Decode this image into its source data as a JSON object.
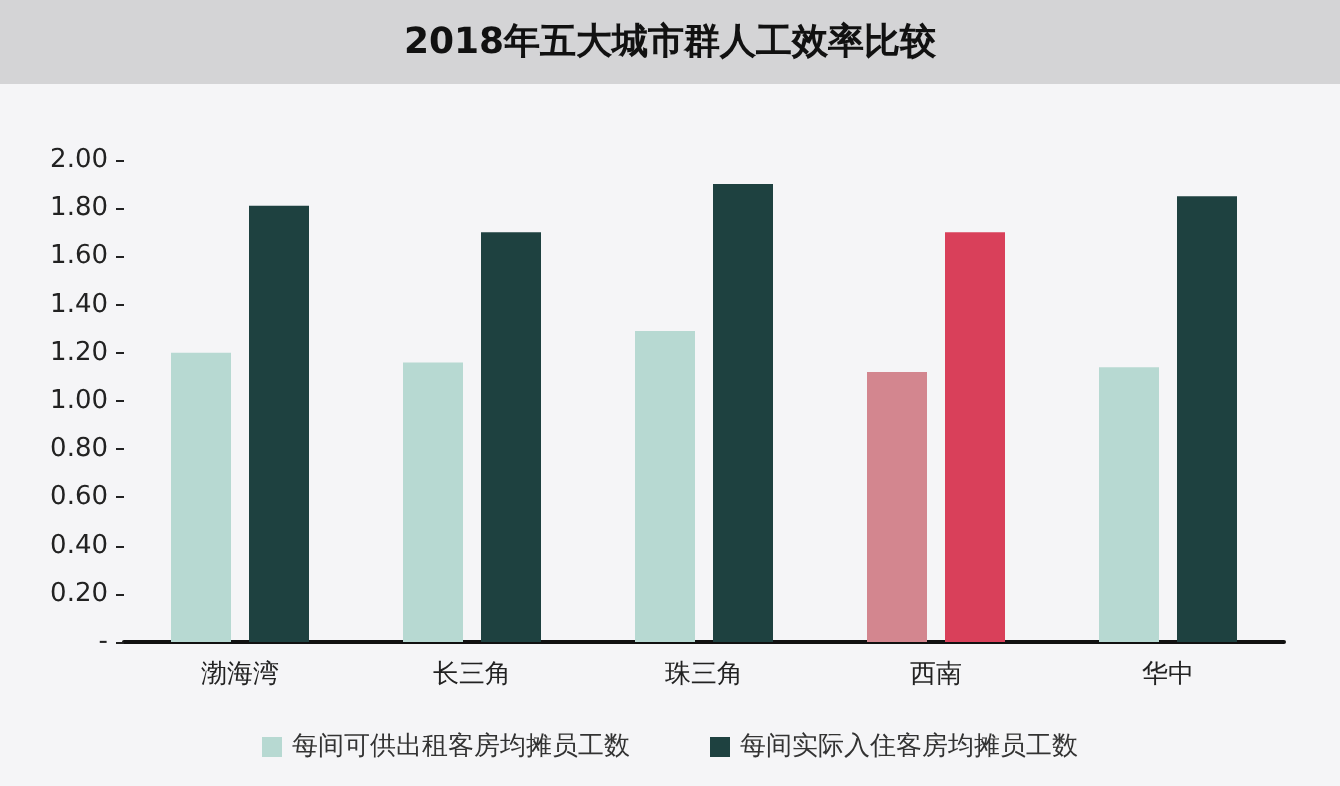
{
  "chart_data": {
    "type": "bar",
    "title": "2018年五大城市群人工效率比较",
    "categories": [
      "渤海湾",
      "长三角",
      "珠三角",
      "西南",
      "华中"
    ],
    "series": [
      {
        "name": "每间可供出租客房均摊员工数",
        "color": "#b7d9d2",
        "colors": [
          "#b7d9d2",
          "#b7d9d2",
          "#b7d9d2",
          "#d3868f",
          "#b7d9d2"
        ],
        "values": [
          1.2,
          1.16,
          1.29,
          1.12,
          1.14
        ]
      },
      {
        "name": "每间实际入住客房均摊员工数",
        "color": "#1e4140",
        "colors": [
          "#1e4140",
          "#1e4140",
          "#1e4140",
          "#d9405a",
          "#1e4140"
        ],
        "values": [
          1.81,
          1.7,
          1.9,
          1.7,
          1.85
        ]
      }
    ],
    "ylim": [
      0,
      2
    ],
    "yticks": [
      {
        "value": 0,
        "label": "-"
      },
      {
        "value": 0.2,
        "label": "0.20"
      },
      {
        "value": 0.4,
        "label": "0.40"
      },
      {
        "value": 0.6,
        "label": "0.60"
      },
      {
        "value": 0.8,
        "label": "0.80"
      },
      {
        "value": 1,
        "label": "1.00"
      },
      {
        "value": 1.2,
        "label": "1.20"
      },
      {
        "value": 1.4,
        "label": "1.40"
      },
      {
        "value": 1.6,
        "label": "1.60"
      },
      {
        "value": 1.8,
        "label": "1.80"
      },
      {
        "value": 2,
        "label": "2.00"
      }
    ],
    "grid": false,
    "legend": "bottom"
  }
}
